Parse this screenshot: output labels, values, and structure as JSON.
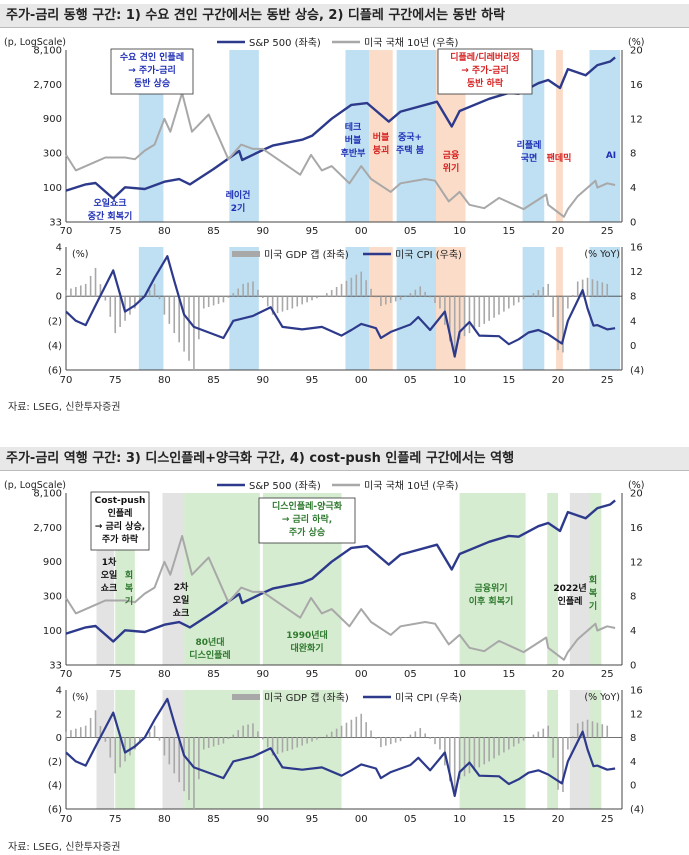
{
  "panel1": {
    "title": "주가-금리 동행 구간: 1) 수요 견인 구간에서는 동반 상승, 2) 디플레 구간에서는 동반 하락",
    "source": "자료: LSEG, 신한투자증권",
    "y_left_unit": "(p, LogScale)",
    "y_right_unit": "(%)",
    "legend_spx": "S&P 500 (좌축)",
    "legend_ust": "미국 국채 10년 (우축)",
    "annotations": [
      {
        "text": "수요 견인 인플레\n→ 주가-금리\n동반 상승",
        "color": "#1f2fb5",
        "boxed": true
      },
      {
        "text": "디플레/디레버리징\n→ 주가-금리\n동반 하락",
        "color": "#d62020",
        "boxed": true
      },
      {
        "text": "오일쇼크\n중간 회복기",
        "color": "#1f2fb5"
      },
      {
        "text": "레이건\n2기",
        "color": "#1f2fb5"
      },
      {
        "text": "테크\n버블\n후반부",
        "color": "#1f2fb5"
      },
      {
        "text": "버블\n붕괴",
        "color": "#d62020"
      },
      {
        "text": "중국+\n주택 붐",
        "color": "#1f2fb5"
      },
      {
        "text": "금융\n위기",
        "color": "#d62020"
      },
      {
        "text": "리플레\n국면",
        "color": "#1f2fb5"
      },
      {
        "text": "팬데믹",
        "color": "#d62020"
      },
      {
        "text": "AI",
        "color": "#1f2fb5"
      }
    ],
    "bottom_left_unit": "(%)",
    "bottom_right_unit": "(% YoY)",
    "legend_gdp": "미국 GDP 갭 (좌축)",
    "legend_cpi": "미국 CPI (우축)"
  },
  "panel2": {
    "title": "주가-금리 역행 구간: 3) 디스인플레+양극화 구간, 4) cost-push 인플레 구간에서는 역행",
    "source": "자료: LSEG, 신한투자증권",
    "y_left_unit": "(p, LogScale)",
    "y_right_unit": "(%)",
    "legend_spx": "S&P 500 (좌축)",
    "legend_ust": "미국 국채 10년 (우축)",
    "annotations": [
      {
        "text": "Cost-push\n인플레\n→ 금리 상승,\n주가 하락",
        "color": "#111",
        "boxed": true
      },
      {
        "text": "디스인플레-양극화\n→ 금리 하락,\n주가 상승",
        "color": "#2f7a2f",
        "boxed": true
      },
      {
        "text": "1차\n오일\n쇼크",
        "color": "#111"
      },
      {
        "text": "회\n복\n기",
        "color": "#2f7a2f"
      },
      {
        "text": "2차\n오일\n쇼크",
        "color": "#111"
      },
      {
        "text": "80년대\n디스인플레",
        "color": "#2f7a2f"
      },
      {
        "text": "1990년대\n대완화기",
        "color": "#2f7a2f"
      },
      {
        "text": "금융위기\n이후 회복기",
        "color": "#2f7a2f"
      },
      {
        "text": "2022년\n인플레",
        "color": "#111"
      },
      {
        "text": "회\n복\n기",
        "color": "#2f7a2f"
      }
    ],
    "bottom_left_unit": "(%)",
    "bottom_right_unit": "(% YoY)",
    "legend_gdp": "미국 GDP 갭 (좌축)",
    "legend_cpi": "미국 CPI (우축)"
  },
  "chart_data": [
    {
      "type": "line",
      "title": "주가-금리 동행 구간: 1) 수요 견인 구간에서는 동반 상승, 2) 디플레 구간에서는 동반 하락",
      "x_ticks": [
        "70",
        "75",
        "80",
        "85",
        "90",
        "95",
        "00",
        "05",
        "10",
        "15",
        "20",
        "25"
      ],
      "y_left_ticks": [
        "8,100",
        "2,700",
        "900",
        "300",
        "100",
        "33"
      ],
      "y_right_ticks": [
        "20",
        "16",
        "12",
        "8",
        "4",
        "0"
      ],
      "y_left_scale": "log",
      "ylim_left": [
        33,
        8100
      ],
      "ylim_right": [
        0,
        20
      ],
      "shaded_periods": [
        {
          "from": 1977.4,
          "to": 1979.9,
          "color": "#bfe0f3"
        },
        {
          "from": 1986.6,
          "to": 1989.6,
          "color": "#bfe0f3"
        },
        {
          "from": 1998.4,
          "to": 2000.8,
          "color": "#bfe0f3"
        },
        {
          "from": 2000.8,
          "to": 2003.2,
          "color": "#fbdcc9"
        },
        {
          "from": 2003.6,
          "to": 2007.6,
          "color": "#bfe0f3"
        },
        {
          "from": 2007.6,
          "to": 2010.6,
          "color": "#fbdcc9"
        },
        {
          "from": 2016.4,
          "to": 2018.6,
          "color": "#bfe0f3"
        },
        {
          "from": 2019.8,
          "to": 2020.5,
          "color": "#fbdcc9"
        },
        {
          "from": 2023.2,
          "to": 2026.3,
          "color": "#bfe0f3"
        }
      ],
      "series": [
        {
          "name": "S&P 500 (좌축)",
          "axis": "left",
          "color": "#2d3a8c",
          "x": [
            1970,
            1972,
            1973,
            1974.8,
            1976,
            1978,
            1980,
            1981.5,
            1982.6,
            1985,
            1987.6,
            1987.9,
            1990,
            1991,
            1994,
            1995,
            1997,
            1999,
            2000.6,
            2002.8,
            2004,
            2007.7,
            2009.2,
            2010,
            2013,
            2015,
            2016,
            2018,
            2019,
            2020.2,
            2021,
            2022.8,
            2024,
            2025.3,
            2025.8
          ],
          "values": [
            90,
            110,
            115,
            70,
            100,
            95,
            120,
            130,
            110,
            180,
            320,
            240,
            330,
            380,
            460,
            520,
            900,
            1400,
            1480,
            820,
            1130,
            1550,
            700,
            1150,
            1700,
            2050,
            2000,
            2800,
            3100,
            2400,
            4400,
            3600,
            5000,
            5600,
            6400
          ]
        },
        {
          "name": "미국 국채 10년 (우축)",
          "axis": "right",
          "color": "#a8a8a8",
          "x": [
            1970,
            1971,
            1973,
            1974,
            1976,
            1977,
            1978,
            1979,
            1980,
            1980.6,
            1981.8,
            1982.8,
            1984.5,
            1986.5,
            1987.8,
            1989,
            1990,
            1993.8,
            1994.9,
            1996,
            1997,
            1998.8,
            2000,
            2001,
            2003,
            2004,
            2006.5,
            2007.5,
            2008.9,
            2010,
            2011,
            2012.5,
            2014,
            2016.5,
            2018.8,
            2019,
            2020.6,
            2021,
            2022,
            2023.8,
            2024,
            2025,
            2025.8
          ],
          "values": [
            7.8,
            6.0,
            7.0,
            7.5,
            7.5,
            7.3,
            8.3,
            9.0,
            12.0,
            10.5,
            15.0,
            10.5,
            12.5,
            7.3,
            9.0,
            8.5,
            8.5,
            5.5,
            7.8,
            6.0,
            6.5,
            4.5,
            6.5,
            5.0,
            3.5,
            4.5,
            5.0,
            4.8,
            2.4,
            3.5,
            2.0,
            1.6,
            2.8,
            1.5,
            3.2,
            2.0,
            0.6,
            1.5,
            3.0,
            4.8,
            4.0,
            4.5,
            4.3
          ]
        }
      ]
    },
    {
      "type": "bar",
      "title": "",
      "x_ticks": [
        "70",
        "75",
        "80",
        "85",
        "90",
        "95",
        "00",
        "05",
        "10",
        "15",
        "20",
        "25"
      ],
      "y_left_ticks": [
        "4",
        "2",
        "0",
        "(2)",
        "(4)",
        "(6)"
      ],
      "y_right_ticks": [
        "16",
        "12",
        "8",
        "4",
        "0",
        "(4)"
      ],
      "ylim_left": [
        -6,
        4
      ],
      "ylim_right": [
        -4,
        16
      ],
      "series": [
        {
          "name": "미국 GDP 갭 (좌축)",
          "axis": "left",
          "color": "#a8a8a8",
          "x": [
            1970,
            1972,
            1973,
            1975,
            1977,
            1979,
            1980,
            1982,
            1983,
            1984,
            1986,
            1988,
            1989,
            1991,
            1993,
            1996,
            1998,
            2000,
            2002,
            2004,
            2006,
            2008,
            2009.5,
            2010,
            2012,
            2014,
            2016,
            2018,
            2019,
            2020.3,
            2021,
            2022,
            2023,
            2025
          ],
          "values": [
            0.5,
            1.0,
            2.3,
            -3.0,
            -1.0,
            1.0,
            -1.5,
            -4.5,
            -6.0,
            -1.0,
            -0.5,
            1.0,
            1.2,
            -1.5,
            -1.0,
            0.0,
            1.0,
            2.0,
            -0.8,
            -0.3,
            0.8,
            -1.0,
            -5.0,
            -3.5,
            -2.5,
            -1.5,
            -0.5,
            0.5,
            1.0,
            -6.0,
            -1.0,
            1.2,
            1.5,
            1.0
          ]
        },
        {
          "name": "미국 CPI (우축)",
          "axis": "right",
          "color": "#2d3a8c",
          "x": [
            1970,
            1971,
            1972,
            1973,
            1974.8,
            1976,
            1977,
            1978,
            1979,
            1980.3,
            1981,
            1982,
            1983,
            1986,
            1987,
            1989,
            1990.8,
            1992,
            1994,
            1996,
            1998,
            1999,
            2000,
            2001.5,
            2002,
            2003,
            2005,
            2005.8,
            2007,
            2008.5,
            2009.5,
            2010,
            2011,
            2012,
            2014,
            2015,
            2016,
            2017,
            2018,
            2019,
            2020.4,
            2021,
            2022.5,
            2023,
            2023.6,
            2024,
            2025,
            2025.8
          ],
          "values": [
            5.5,
            4.0,
            3.3,
            6.5,
            12.2,
            5.5,
            6.5,
            8.0,
            11.0,
            14.5,
            10.5,
            5.0,
            3.0,
            1.2,
            4.0,
            4.8,
            6.2,
            3.0,
            2.6,
            3.0,
            1.6,
            2.5,
            3.5,
            2.8,
            1.2,
            2.2,
            3.4,
            4.6,
            2.5,
            5.5,
            -1.8,
            2.2,
            3.8,
            1.6,
            1.5,
            0.2,
            1.0,
            2.1,
            2.5,
            1.8,
            0.3,
            4.0,
            9.0,
            6.0,
            3.2,
            3.3,
            2.6,
            2.8
          ]
        }
      ]
    },
    {
      "type": "line",
      "title": "주가-금리 역행 구간: 3) 디스인플레+양극화 구간, 4) cost-push 인플레 구간에서는 역행",
      "x_ticks": [
        "70",
        "75",
        "80",
        "85",
        "90",
        "95",
        "00",
        "05",
        "10",
        "15",
        "20",
        "25"
      ],
      "y_left_ticks": [
        "8,100",
        "2,700",
        "900",
        "300",
        "100",
        "33"
      ],
      "y_right_ticks": [
        "20",
        "16",
        "12",
        "8",
        "4",
        "0"
      ],
      "y_left_scale": "log",
      "ylim_left": [
        33,
        8100
      ],
      "ylim_right": [
        0,
        20
      ],
      "shaded_periods": [
        {
          "from": 1973.1,
          "to": 1974.9,
          "color": "#e3e3e3"
        },
        {
          "from": 1975.0,
          "to": 1977.0,
          "color": "#d6ecd0"
        },
        {
          "from": 1979.8,
          "to": 1982.0,
          "color": "#e3e3e3"
        },
        {
          "from": 1982.0,
          "to": 1989.7,
          "color": "#d6ecd0"
        },
        {
          "from": 1990.0,
          "to": 1998.0,
          "color": "#d6ecd0"
        },
        {
          "from": 2010.0,
          "to": 2016.7,
          "color": "#d6ecd0"
        },
        {
          "from": 2018.9,
          "to": 2020.0,
          "color": "#d6ecd0"
        },
        {
          "from": 2021.2,
          "to": 2023.2,
          "color": "#e3e3e3"
        },
        {
          "from": 2023.2,
          "to": 2024.4,
          "color": "#d6ecd0"
        }
      ],
      "series": [
        {
          "name": "S&P 500 (좌축)",
          "axis": "left",
          "color": "#2d3a8c",
          "x": [
            1970,
            1972,
            1973,
            1974.8,
            1976,
            1978,
            1980,
            1981.5,
            1982.6,
            1985,
            1987.6,
            1987.9,
            1990,
            1991,
            1994,
            1995,
            1997,
            1999,
            2000.6,
            2002.8,
            2004,
            2007.7,
            2009.2,
            2010,
            2013,
            2015,
            2016,
            2018,
            2019,
            2020.2,
            2021,
            2022.8,
            2024,
            2025.3,
            2025.8
          ],
          "values": [
            90,
            110,
            115,
            70,
            100,
            95,
            120,
            130,
            110,
            180,
            320,
            240,
            330,
            380,
            460,
            520,
            900,
            1400,
            1480,
            820,
            1130,
            1550,
            700,
            1150,
            1700,
            2050,
            2000,
            2800,
            3100,
            2400,
            4400,
            3600,
            5000,
            5600,
            6400
          ]
        },
        {
          "name": "미국 국채 10년 (우축)",
          "axis": "right",
          "color": "#a8a8a8",
          "x": [
            1970,
            1971,
            1973,
            1974,
            1976,
            1977,
            1978,
            1979,
            1980,
            1980.6,
            1981.8,
            1982.8,
            1984.5,
            1986.5,
            1987.8,
            1989,
            1990,
            1993.8,
            1994.9,
            1996,
            1997,
            1998.8,
            2000,
            2001,
            2003,
            2004,
            2006.5,
            2007.5,
            2008.9,
            2010,
            2011,
            2012.5,
            2014,
            2016.5,
            2018.8,
            2019,
            2020.6,
            2021,
            2022,
            2023.8,
            2024,
            2025,
            2025.8
          ],
          "values": [
            7.8,
            6.0,
            7.0,
            7.5,
            7.5,
            7.3,
            8.3,
            9.0,
            12.0,
            10.5,
            15.0,
            10.5,
            12.5,
            7.3,
            9.0,
            8.5,
            8.5,
            5.5,
            7.8,
            6.0,
            6.5,
            4.5,
            6.5,
            5.0,
            3.5,
            4.5,
            5.0,
            4.8,
            2.4,
            3.5,
            2.0,
            1.6,
            2.8,
            1.5,
            3.2,
            2.0,
            0.6,
            1.5,
            3.0,
            4.8,
            4.0,
            4.5,
            4.3
          ]
        }
      ]
    },
    {
      "type": "bar",
      "title": "",
      "x_ticks": [
        "70",
        "75",
        "80",
        "85",
        "90",
        "95",
        "00",
        "05",
        "10",
        "15",
        "20",
        "25"
      ],
      "y_left_ticks": [
        "4",
        "2",
        "0",
        "(2)",
        "(4)",
        "(6)"
      ],
      "y_right_ticks": [
        "16",
        "12",
        "8",
        "4",
        "0",
        "(4)"
      ],
      "ylim_left": [
        -6,
        4
      ],
      "ylim_right": [
        -4,
        16
      ],
      "series": [
        {
          "name": "미국 GDP 갭 (좌축)",
          "axis": "left",
          "color": "#a8a8a8",
          "x": [
            1970,
            1972,
            1973,
            1975,
            1977,
            1979,
            1980,
            1982,
            1983,
            1984,
            1986,
            1988,
            1989,
            1991,
            1993,
            1996,
            1998,
            2000,
            2002,
            2004,
            2006,
            2008,
            2009.5,
            2010,
            2012,
            2014,
            2016,
            2018,
            2019,
            2020.3,
            2021,
            2022,
            2023,
            2025
          ],
          "values": [
            0.5,
            1.0,
            2.3,
            -3.0,
            -1.0,
            1.0,
            -1.5,
            -4.5,
            -6.0,
            -1.0,
            -0.5,
            1.0,
            1.2,
            -1.5,
            -1.0,
            0.0,
            1.0,
            2.0,
            -0.8,
            -0.3,
            0.8,
            -1.0,
            -5.0,
            -3.5,
            -2.5,
            -1.5,
            -0.5,
            0.5,
            1.0,
            -6.0,
            -1.0,
            1.2,
            1.5,
            1.0
          ]
        },
        {
          "name": "미국 CPI (우축)",
          "axis": "right",
          "color": "#2d3a8c",
          "x": [
            1970,
            1971,
            1972,
            1973,
            1974.8,
            1976,
            1977,
            1978,
            1979,
            1980.3,
            1981,
            1982,
            1983,
            1986,
            1987,
            1989,
            1990.8,
            1992,
            1994,
            1996,
            1998,
            1999,
            2000,
            2001.5,
            2002,
            2003,
            2005,
            2005.8,
            2007,
            2008.5,
            2009.5,
            2010,
            2011,
            2012,
            2014,
            2015,
            2016,
            2017,
            2018,
            2019,
            2020.4,
            2021,
            2022.5,
            2023,
            2023.6,
            2024,
            2025,
            2025.8
          ],
          "values": [
            5.5,
            4.0,
            3.3,
            6.5,
            12.2,
            5.5,
            6.5,
            8.0,
            11.0,
            14.5,
            10.5,
            5.0,
            3.0,
            1.2,
            4.0,
            4.8,
            6.2,
            3.0,
            2.6,
            3.0,
            1.6,
            2.5,
            3.5,
            2.8,
            1.2,
            2.2,
            3.4,
            4.6,
            2.5,
            5.5,
            -1.8,
            2.2,
            3.8,
            1.6,
            1.5,
            0.2,
            1.0,
            2.1,
            2.5,
            1.8,
            0.3,
            4.0,
            9.0,
            6.0,
            3.2,
            3.3,
            2.6,
            2.8
          ]
        }
      ]
    }
  ]
}
